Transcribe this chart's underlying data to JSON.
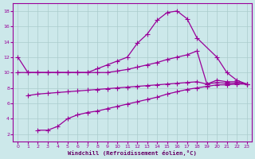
{
  "bg_color": "#cce8ea",
  "line_color": "#990099",
  "grid_color": "#aacccc",
  "xlabel": "Windchill (Refroidissement éolien,°C)",
  "xlabel_color": "#660066",
  "xlim": [
    -0.5,
    23.5
  ],
  "ylim": [
    1,
    19
  ],
  "xticks": [
    0,
    1,
    2,
    3,
    4,
    5,
    6,
    7,
    8,
    9,
    10,
    11,
    12,
    13,
    14,
    15,
    16,
    17,
    18,
    19,
    20,
    21,
    22,
    23
  ],
  "yticks": [
    2,
    4,
    6,
    8,
    10,
    12,
    14,
    16,
    18
  ],
  "line1_x": [
    0,
    1,
    2,
    3,
    4,
    5,
    6,
    7,
    8,
    9,
    10,
    11,
    12,
    13,
    14,
    15,
    16,
    17,
    18,
    20,
    21,
    22,
    23
  ],
  "line1_y": [
    12,
    10,
    10,
    10,
    10,
    10,
    10,
    10,
    10.5,
    11,
    11.5,
    12,
    13.8,
    15,
    16.8,
    17.8,
    18,
    17,
    14.5,
    12,
    10,
    9,
    8.5
  ],
  "line2_x": [
    0,
    1,
    2,
    3,
    4,
    5,
    6,
    7,
    8,
    9,
    10,
    11,
    12,
    13,
    14,
    15,
    16,
    17,
    18,
    19,
    20,
    21,
    22,
    23
  ],
  "line2_y": [
    10,
    10,
    10,
    10,
    10,
    10,
    10,
    10,
    10,
    10,
    10.2,
    10.4,
    10.7,
    11.0,
    11.3,
    11.7,
    12.0,
    12.3,
    12.8,
    8.5,
    9.0,
    8.8,
    8.8,
    8.5
  ],
  "line3_x": [
    1,
    2,
    3,
    4,
    5,
    6,
    7,
    8,
    9,
    10,
    11,
    12,
    13,
    14,
    15,
    16,
    17,
    18,
    19,
    20,
    21,
    22,
    23
  ],
  "line3_y": [
    7,
    7.2,
    7.3,
    7.4,
    7.5,
    7.6,
    7.7,
    7.8,
    7.9,
    8.0,
    8.1,
    8.2,
    8.3,
    8.4,
    8.5,
    8.6,
    8.7,
    8.8,
    8.5,
    8.7,
    8.6,
    8.6,
    8.5
  ],
  "line4_x": [
    2,
    3,
    4,
    5,
    6,
    7,
    8,
    9,
    10,
    11,
    12,
    13,
    14,
    15,
    16,
    17,
    18,
    19,
    20,
    21,
    22,
    23
  ],
  "line4_y": [
    2.5,
    2.5,
    3.0,
    4.0,
    4.5,
    4.8,
    5.0,
    5.3,
    5.6,
    5.9,
    6.2,
    6.5,
    6.8,
    7.2,
    7.5,
    7.8,
    8.0,
    8.2,
    8.4,
    8.4,
    8.5,
    8.5
  ]
}
